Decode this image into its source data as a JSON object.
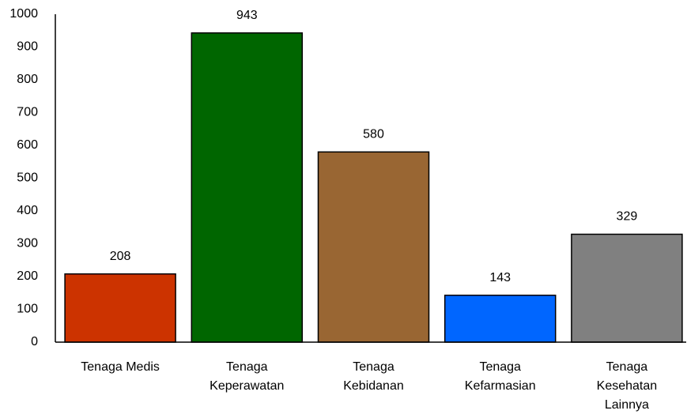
{
  "chart_data": {
    "type": "bar",
    "categories": [
      "Tenaga Medis",
      "Tenaga Keperawatan",
      "Tenaga Kebidanan",
      "Tenaga Kefarmasian",
      "Tenaga Kesehatan Lainnya"
    ],
    "values": [
      208,
      943,
      580,
      143,
      329
    ],
    "colors": [
      "#cc3300",
      "#006600",
      "#996633",
      "#0066ff",
      "#808080"
    ],
    "ylim": [
      0,
      1000
    ],
    "yticks": [
      0,
      100,
      200,
      300,
      400,
      500,
      600,
      700,
      800,
      900,
      1000
    ],
    "grid": false
  }
}
